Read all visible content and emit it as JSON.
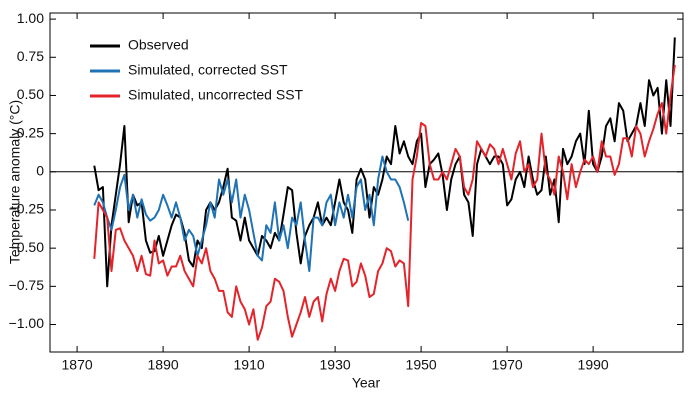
{
  "chart_data": {
    "type": "line",
    "xlabel": "Year",
    "ylabel": "Temperature anomaly (°C)",
    "x": [
      1874,
      1875,
      1876,
      1877,
      1878,
      1879,
      1880,
      1881,
      1882,
      1883,
      1884,
      1885,
      1886,
      1887,
      1888,
      1889,
      1890,
      1891,
      1892,
      1893,
      1894,
      1895,
      1896,
      1897,
      1898,
      1899,
      1900,
      1901,
      1902,
      1903,
      1904,
      1905,
      1906,
      1907,
      1908,
      1909,
      1910,
      1911,
      1912,
      1913,
      1914,
      1915,
      1916,
      1917,
      1918,
      1919,
      1920,
      1921,
      1922,
      1923,
      1924,
      1925,
      1926,
      1927,
      1928,
      1929,
      1930,
      1931,
      1932,
      1933,
      1934,
      1935,
      1936,
      1937,
      1938,
      1939,
      1940,
      1941,
      1942,
      1943,
      1944,
      1945,
      1946,
      1947,
      1948,
      1949,
      1950,
      1951,
      1952,
      1953,
      1954,
      1955,
      1956,
      1957,
      1958,
      1959,
      1960,
      1961,
      1962,
      1963,
      1964,
      1965,
      1966,
      1967,
      1968,
      1969,
      1970,
      1971,
      1972,
      1973,
      1974,
      1975,
      1976,
      1977,
      1978,
      1979,
      1980,
      1981,
      1982,
      1983,
      1984,
      1985,
      1986,
      1987,
      1988,
      1989,
      1990,
      1991,
      1992,
      1993,
      1994,
      1995,
      1996,
      1997,
      1998,
      1999,
      2000,
      2001,
      2002,
      2003,
      2004,
      2005,
      2006,
      2007,
      2008,
      2009
    ],
    "series": [
      {
        "name": "Observed",
        "color": "#000000",
        "values": [
          0.04,
          -0.12,
          -0.1,
          -0.75,
          -0.35,
          -0.15,
          0.05,
          0.3,
          -0.33,
          -0.15,
          -0.22,
          -0.2,
          -0.45,
          -0.53,
          -0.52,
          -0.42,
          -0.55,
          -0.45,
          -0.35,
          -0.28,
          -0.3,
          -0.4,
          -0.58,
          -0.62,
          -0.45,
          -0.5,
          -0.25,
          -0.2,
          -0.25,
          -0.2,
          -0.1,
          0.02,
          -0.3,
          -0.32,
          -0.45,
          -0.3,
          -0.45,
          -0.5,
          -0.55,
          -0.42,
          -0.45,
          -0.5,
          -0.4,
          -0.45,
          -0.28,
          -0.1,
          -0.12,
          -0.4,
          -0.6,
          -0.42,
          -0.35,
          -0.3,
          -0.2,
          -0.35,
          -0.3,
          -0.35,
          -0.2,
          -0.05,
          -0.2,
          -0.25,
          -0.4,
          -0.05,
          0.02,
          -0.05,
          -0.3,
          -0.1,
          -0.15,
          -0.05,
          0.1,
          0.05,
          0.3,
          0.12,
          0.2,
          0.1,
          0.05,
          0.2,
          0.25,
          -0.1,
          0.05,
          0.08,
          0.12,
          -0.02,
          -0.25,
          -0.05,
          0.05,
          0.1,
          -0.15,
          -0.2,
          -0.42,
          0.05,
          0.15,
          0.1,
          0.05,
          0.1,
          0.1,
          0.05,
          -0.22,
          -0.18,
          -0.05,
          0.0,
          -0.1,
          0.1,
          -0.05,
          -0.15,
          -0.12,
          0.1,
          -0.15,
          -0.05,
          -0.33,
          0.15,
          0.05,
          0.1,
          0.2,
          0.25,
          0.05,
          0.4,
          0.05,
          0.0,
          0.1,
          0.3,
          0.35,
          0.2,
          0.45,
          0.4,
          0.2,
          0.25,
          0.3,
          0.45,
          0.3,
          0.6,
          0.5,
          0.55,
          0.25,
          0.6,
          0.3,
          0.88
        ]
      },
      {
        "name": "Simulated, corrected SST",
        "color": "#1f72b4",
        "values": [
          -0.22,
          -0.15,
          -0.2,
          -0.3,
          -0.38,
          -0.25,
          -0.1,
          -0.02,
          -0.25,
          -0.15,
          -0.3,
          -0.18,
          -0.28,
          -0.32,
          -0.3,
          -0.25,
          -0.15,
          -0.22,
          -0.3,
          -0.2,
          -0.3,
          -0.45,
          -0.38,
          -0.42,
          -0.55,
          -0.45,
          -0.35,
          -0.2,
          -0.3,
          -0.05,
          -0.15,
          -0.05,
          -0.2,
          -0.05,
          -0.3,
          -0.15,
          -0.25,
          -0.4,
          -0.55,
          -0.58,
          -0.35,
          -0.4,
          -0.2,
          -0.45,
          -0.35,
          -0.5,
          -0.3,
          -0.35,
          -0.2,
          -0.45,
          -0.65,
          -0.3,
          -0.3,
          -0.35,
          -0.2,
          -0.15,
          -0.35,
          -0.2,
          -0.3,
          -0.15,
          -0.3,
          -0.1,
          -0.05,
          -0.25,
          -0.15,
          -0.35,
          -0.05,
          0.1,
          0.0,
          -0.05,
          -0.05,
          -0.1,
          -0.2,
          -0.32,
          null,
          null,
          null,
          null,
          null,
          null,
          null,
          null,
          null,
          null,
          null,
          null,
          null,
          null,
          null,
          null,
          null,
          null,
          null,
          null,
          null,
          null,
          null,
          null,
          null,
          null,
          null,
          null,
          null,
          null,
          null,
          null,
          null,
          null,
          null,
          null,
          null,
          null,
          null,
          null,
          null,
          null,
          null,
          null,
          null,
          null,
          null,
          null,
          null,
          null,
          null,
          null,
          null,
          null,
          null,
          null,
          null,
          null,
          null,
          null,
          null,
          null
        ]
      },
      {
        "name": "Simulated, uncorrected SST",
        "color": "#e3242b",
        "values": [
          -0.57,
          -0.2,
          -0.25,
          -0.3,
          -0.65,
          -0.38,
          -0.37,
          -0.45,
          -0.5,
          -0.55,
          -0.65,
          -0.55,
          -0.67,
          -0.68,
          -0.45,
          -0.6,
          -0.58,
          -0.68,
          -0.62,
          -0.62,
          -0.55,
          -0.65,
          -0.7,
          -0.75,
          -0.55,
          -0.6,
          -0.5,
          -0.65,
          -0.7,
          -0.78,
          -0.78,
          -0.92,
          -0.95,
          -0.75,
          -0.85,
          -0.9,
          -1.0,
          -0.9,
          -1.1,
          -1.02,
          -0.88,
          -0.85,
          -0.7,
          -0.72,
          -0.78,
          -0.95,
          -1.08,
          -1.0,
          -0.92,
          -0.82,
          -0.95,
          -0.85,
          -0.82,
          -0.98,
          -0.8,
          -0.7,
          -0.78,
          -0.65,
          -0.57,
          -0.58,
          -0.75,
          -0.72,
          -0.6,
          -0.68,
          -0.82,
          -0.8,
          -0.65,
          -0.6,
          -0.5,
          -0.52,
          -0.62,
          -0.58,
          -0.6,
          -0.88,
          -0.05,
          0.1,
          0.32,
          0.3,
          0.05,
          -0.05,
          -0.05,
          0.0,
          -0.05,
          0.05,
          0.15,
          0.1,
          -0.1,
          -0.15,
          -0.05,
          0.2,
          0.15,
          0.1,
          0.18,
          0.15,
          0.05,
          0.15,
          0.05,
          -0.05,
          0.12,
          0.2,
          0.0,
          0.05,
          -0.1,
          -0.05,
          0.25,
          0.0,
          -0.05,
          -0.15,
          0.1,
          0.0,
          -0.18,
          0.05,
          -0.1,
          0.0,
          0.08,
          0.05,
          0.1,
          0.0,
          0.2,
          0.1,
          0.1,
          -0.02,
          0.05,
          0.22,
          0.22,
          0.1,
          0.3,
          0.25,
          0.1,
          0.2,
          0.28,
          0.38,
          0.45,
          0.25,
          0.5,
          0.7
        ]
      }
    ],
    "xlim": [
      1863.7,
      2010.9
    ],
    "xticks": [
      1870,
      1890,
      1910,
      1930,
      1950,
      1970,
      1990
    ],
    "ylim": [
      -1.18,
      1.04
    ],
    "yticks": [
      {
        "value": 1,
        "label": "1.00"
      },
      0.75,
      {
        "value": 0.5,
        "label": "0.50"
      },
      0.25,
      0,
      {
        "value": -0.25,
        "label": "−0.25"
      },
      {
        "value": -0.5,
        "label": "−0.50"
      },
      {
        "value": -0.75,
        "label": "−0.75"
      },
      {
        "value": -1,
        "label": "−1.00"
      }
    ],
    "zero_line": true,
    "legend": "upper left"
  }
}
